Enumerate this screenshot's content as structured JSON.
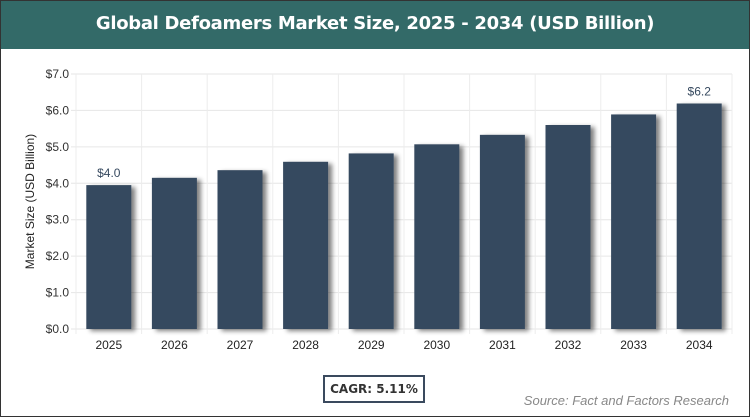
{
  "chart_data": {
    "type": "bar",
    "title": "Global Defoamers Market Size, 2025 - 2034 (USD Billion)",
    "ylabel": "Market Size (USD Billion)",
    "xlabel": "",
    "categories": [
      "2025",
      "2026",
      "2027",
      "2028",
      "2029",
      "2030",
      "2031",
      "2032",
      "2033",
      "2034"
    ],
    "values": [
      3.95,
      4.15,
      4.36,
      4.59,
      4.82,
      5.07,
      5.33,
      5.6,
      5.89,
      6.19
    ],
    "data_labels": {
      "2025": "$4.0",
      "2034": "$6.2"
    },
    "ylim": [
      0,
      7
    ],
    "yticks": [
      "$0.0",
      "$1.0",
      "$2.0",
      "$3.0",
      "$4.0",
      "$5.0",
      "$6.0",
      "$7.0"
    ],
    "grid": true,
    "bar_color": "#36495f",
    "header_color": "#336a68"
  },
  "cagr": "CAGR: 5.11%",
  "source": "Source: Fact and Factors Research"
}
